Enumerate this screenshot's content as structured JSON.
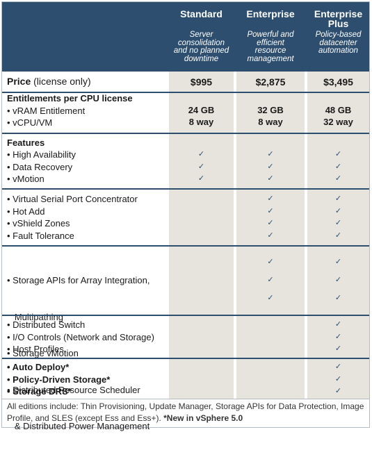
{
  "editions": [
    {
      "name": "Standard",
      "desc_lines": [
        "Server",
        "consolidation",
        "and no planned",
        "downtime"
      ],
      "price": "$995",
      "vram": "24 GB",
      "vcpu": "8 way"
    },
    {
      "name": "Enterprise",
      "desc_lines": [
        "Powerful and",
        "efficient",
        "resource",
        "management"
      ],
      "price": "$2,875",
      "vram": "32 GB",
      "vcpu": "8 way"
    },
    {
      "name_lines": [
        "Enterprise",
        "Plus"
      ],
      "desc_lines": [
        "Policy-based",
        "datacenter",
        "automation"
      ],
      "price": "$3,495",
      "vram": "48 GB",
      "vcpu": "32 way"
    }
  ],
  "price_row": {
    "label": "Price",
    "label_suffix": " (license only)"
  },
  "entitlements": {
    "heading": "Entitlements per CPU license",
    "items": [
      "• vRAM Entitlement",
      "• vCPU/VM"
    ]
  },
  "features_heading": "Features",
  "check_mark": "✓",
  "feature_groups": [
    {
      "lines": [
        "• High Availability",
        "• Data Recovery",
        "• vMotion"
      ]
    },
    {
      "lines": [
        "• Virtual Serial Port Concentrator",
        "• Hot Add",
        "• vShield Zones",
        "• Fault Tolerance"
      ]
    },
    {
      "lines": [
        "• Storage APIs for Array Integration,",
        "   Multipathing",
        "• Storage vMotion",
        "• Distributed Resource Scheduler",
        "   & Distributed Power Management"
      ]
    },
    {
      "lines": [
        "• Distributed Switch",
        "• I/O Controls (Network and Storage)",
        "• Host Profiles"
      ]
    },
    {
      "lines": [
        "• Auto Deploy*",
        "• Policy-Driven Storage*",
        "• Storage DRS*"
      ]
    }
  ],
  "footer": {
    "text": "All editions include: Thin Provisioning, Update Manager, Storage APIs for Data Protection, Image Profile, and SLES (except Ess and Ess+). ",
    "bold": "*New in vSphere 5.0"
  }
}
